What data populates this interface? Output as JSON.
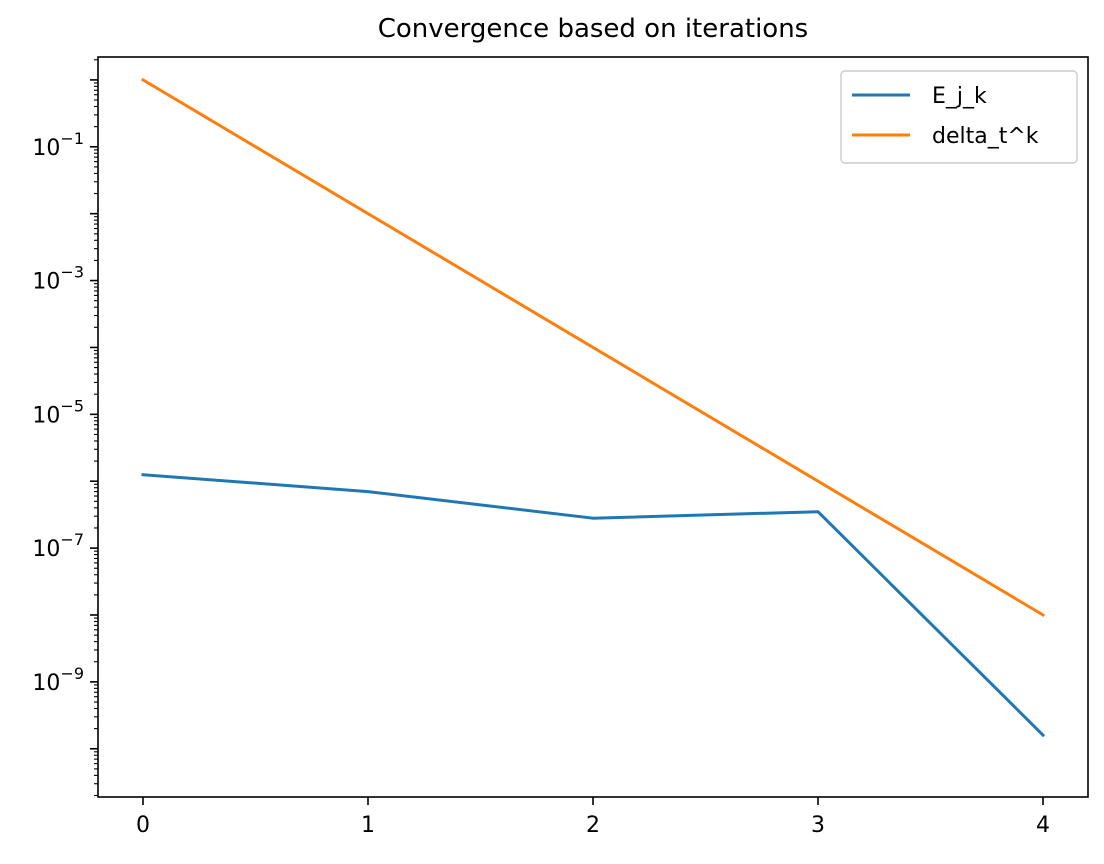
{
  "chart_data": {
    "type": "line",
    "title": "Convergence based on iterations",
    "xlabel": "",
    "ylabel": "",
    "x": [
      0,
      1,
      2,
      3,
      4
    ],
    "xlim": [
      -0.2,
      4.2
    ],
    "ylim": [
      1.9e-11,
      2.2
    ],
    "yscale": "log",
    "xticks": [
      0,
      1,
      2,
      3,
      4
    ],
    "xtick_labels": [
      "0",
      "1",
      "2",
      "3",
      "4"
    ],
    "yticks": [
      1e-09,
      1e-07,
      1e-05,
      0.001,
      0.1
    ],
    "ytick_labels": [
      {
        "base": "10",
        "exp": "−9"
      },
      {
        "base": "10",
        "exp": "−7"
      },
      {
        "base": "10",
        "exp": "−5"
      },
      {
        "base": "10",
        "exp": "−3"
      },
      {
        "base": "10",
        "exp": "−1"
      }
    ],
    "grid": false,
    "legend": "top-right",
    "series": [
      {
        "name": "E_j_k",
        "color": "#1f77b4",
        "values": [
          1.25e-06,
          7e-07,
          2.8e-07,
          3.5e-07,
          1.6e-10
        ]
      },
      {
        "name": "delta_t^k",
        "color": "#ff7f0e",
        "values": [
          1,
          0.01,
          0.0001,
          1e-06,
          1e-08
        ]
      }
    ]
  }
}
